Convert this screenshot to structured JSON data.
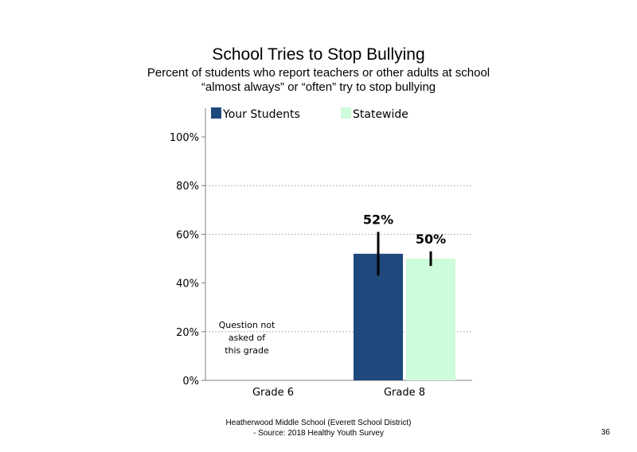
{
  "slide": {
    "title": "School Tries to Stop Bullying",
    "subtitle_line1": "Percent of students who report teachers or other adults at school",
    "subtitle_line2": "“almost always” or “often” try to stop bullying",
    "footer_line1": "Heatherwood Middle School (Everett School District)",
    "footer_line2": "- Source: 2018 Healthy Youth Survey",
    "page_number": "36"
  },
  "chart_data": {
    "type": "bar",
    "title": "School Tries to Stop Bullying",
    "categories": [
      "Grade 6",
      "Grade 8"
    ],
    "series": [
      {
        "name": "Your Students",
        "color": "#1F497D",
        "values": [
          null,
          52
        ],
        "error_low": [
          null,
          43
        ],
        "error_high": [
          null,
          61
        ],
        "labels": [
          null,
          "52%"
        ]
      },
      {
        "name": "Statewide",
        "color": "#CCFCD9",
        "values": [
          null,
          50
        ],
        "error_low": [
          null,
          47
        ],
        "error_high": [
          null,
          53
        ],
        "labels": [
          null,
          "50%"
        ]
      }
    ],
    "ylim": [
      0,
      100
    ],
    "yticks": [
      0,
      20,
      40,
      60,
      80,
      100
    ],
    "ytick_labels": [
      "0%",
      "20%",
      "40%",
      "60%",
      "80%",
      "100%"
    ],
    "gridlines": [
      20,
      60,
      80
    ],
    "legend_position": "top",
    "annotation": "Question not asked of this grade",
    "annotation_lines": [
      "Question not",
      "asked of",
      "this grade"
    ]
  }
}
